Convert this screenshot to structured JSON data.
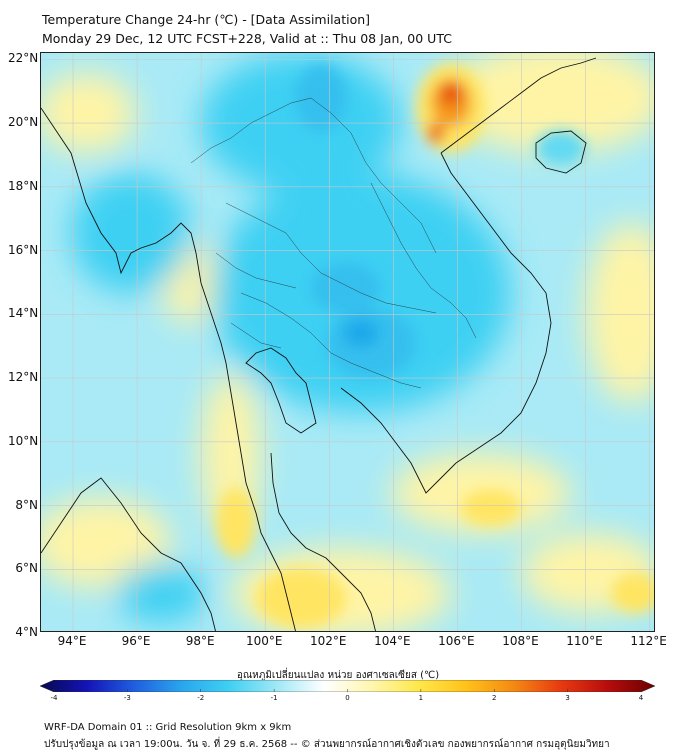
{
  "title": {
    "line1": "Temperature Change 24-hr (℃) - [Data Assimilation]",
    "line2": "Monday 29 Dec, 12 UTC FCST+228, Valid at :: Thu 08 Jan, 00 UTC"
  },
  "axes": {
    "lat_labels": [
      "22°N",
      "20°N",
      "18°N",
      "16°N",
      "14°N",
      "12°N",
      "10°N",
      "8°N",
      "6°N",
      "4°N"
    ],
    "lat_values": [
      22,
      20,
      18,
      16,
      14,
      12,
      10,
      8,
      6,
      4
    ],
    "lon_labels": [
      "94°E",
      "96°E",
      "98°E",
      "100°E",
      "102°E",
      "104°E",
      "106°E",
      "108°E",
      "110°E",
      "112°E"
    ],
    "lon_values": [
      94,
      96,
      98,
      100,
      102,
      104,
      106,
      108,
      110,
      112
    ],
    "lat_range": [
      4,
      22.2
    ],
    "lon_range": [
      93,
      112.2
    ]
  },
  "colorbar": {
    "title": "อุณหภูมิเปลี่ยนแปลง หน่วย องศาเซลเซียส (℃)",
    "tick_labels": [
      "-4",
      "-3",
      "-2",
      "-1",
      "0",
      "1",
      "2",
      "3",
      "4"
    ],
    "range": [
      -4,
      4
    ],
    "colors": [
      "#08084e",
      "#1414b8",
      "#1f5fe0",
      "#2aa6ee",
      "#3fd0f2",
      "#9fe8f6",
      "#ffffff",
      "#fff6b0",
      "#ffe84a",
      "#ffc21a",
      "#f58a12",
      "#e83a10",
      "#b80c0c",
      "#6a0000"
    ]
  },
  "field": {
    "background": "#a9eaf6",
    "cool_colors": [
      "#3dd0f3",
      "#35bfee",
      "#63d9f3",
      "#1fa8ea"
    ],
    "warm_colors": [
      "#fff4a6",
      "#ffe562",
      "#ffcf2a",
      "#f5981a",
      "#e8520f"
    ]
  },
  "footer": {
    "line1": "WRF-DA Domain 01 :: Grid Resolution 9km x 9km",
    "line2": "ปรับปรุงข้อมูล ณ เวลา 19:00น. วัน จ. ที่ 29 ธ.ค. 2568 -- © ส่วนพยากรณ์อากาศเชิงตัวเลข กองพยากรณ์อากาศ กรมอุตุนิยมวิทยา"
  }
}
